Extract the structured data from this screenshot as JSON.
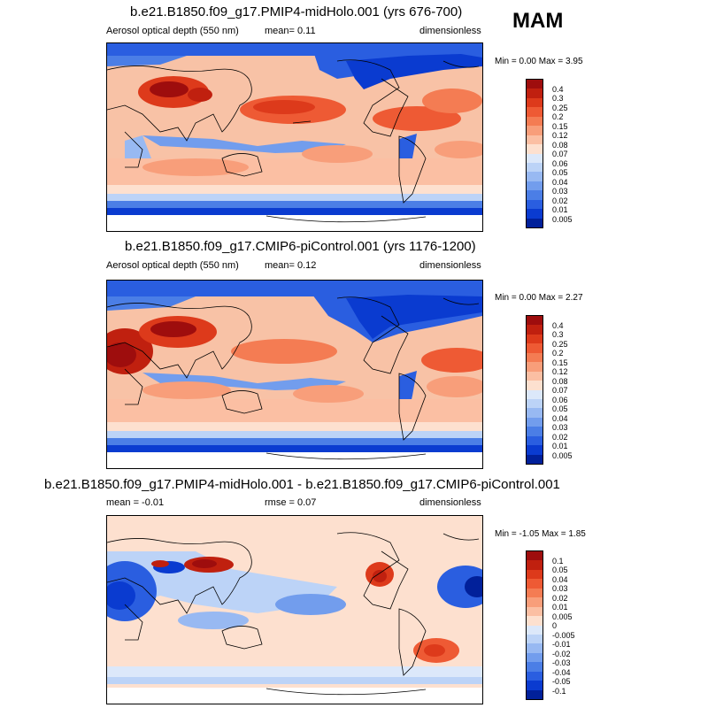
{
  "season": "MAM",
  "panels": [
    {
      "title": "b.e21.B1850.f09_g17.PMIP4-midHolo.001 (yrs 676-700)",
      "left_label": "Aerosol optical depth (550 nm)",
      "center_label": "mean=   0.11",
      "right_label": "dimensionless",
      "minmax": "Min =   0.00 Max =   3.95",
      "colorbar_labels": [
        "0.4",
        "0.3",
        "0.25",
        "0.2",
        "0.15",
        "0.12",
        "0.08",
        "0.07",
        "0.06",
        "0.05",
        "0.04",
        "0.03",
        "0.02",
        "0.01",
        "0.005"
      ],
      "colorbar_colors": [
        "#9e0d0d",
        "#c0200f",
        "#dd3a1b",
        "#ee5a34",
        "#f47c53",
        "#f89e7a",
        "#fbbfa3",
        "#fde0cf",
        "#dce8fa",
        "#bcd3f7",
        "#98b9f2",
        "#729ded",
        "#4b7ee6",
        "#2a5ee0",
        "#0a3bd0",
        "#01209a"
      ]
    },
    {
      "title": "b.e21.B1850.f09_g17.CMIP6-piControl.001 (yrs 1176-1200)",
      "left_label": "Aerosol optical depth (550 nm)",
      "center_label": "mean=   0.12",
      "right_label": "dimensionless",
      "minmax": "Min =   0.00 Max =   2.27",
      "colorbar_labels": [
        "0.4",
        "0.3",
        "0.25",
        "0.2",
        "0.15",
        "0.12",
        "0.08",
        "0.07",
        "0.06",
        "0.05",
        "0.04",
        "0.03",
        "0.02",
        "0.01",
        "0.005"
      ],
      "colorbar_colors": [
        "#9e0d0d",
        "#c0200f",
        "#dd3a1b",
        "#ee5a34",
        "#f47c53",
        "#f89e7a",
        "#fbbfa3",
        "#fde0cf",
        "#dce8fa",
        "#bcd3f7",
        "#98b9f2",
        "#729ded",
        "#4b7ee6",
        "#2a5ee0",
        "#0a3bd0",
        "#01209a"
      ]
    },
    {
      "title": "b.e21.B1850.f09_g17.PMIP4-midHolo.001 - b.e21.B1850.f09_g17.CMIP6-piControl.001",
      "left_label": "mean =   -0.01",
      "center_label": "rmse =   0.07",
      "right_label": "dimensionless",
      "minmax": "Min =  -1.05 Max =   1.85",
      "colorbar_labels": [
        "0.1",
        "0.05",
        "0.04",
        "0.03",
        "0.02",
        "0.01",
        "0.005",
        "0",
        "-0.005",
        "-0.01",
        "-0.02",
        "-0.03",
        "-0.04",
        "-0.05",
        "-0.1"
      ],
      "colorbar_colors": [
        "#9e0d0d",
        "#c0200f",
        "#dd3a1b",
        "#ee5a34",
        "#f47c53",
        "#f89e7a",
        "#fbbfa3",
        "#fde0cf",
        "#dce8fa",
        "#bcd3f7",
        "#98b9f2",
        "#729ded",
        "#4b7ee6",
        "#2a5ee0",
        "#0a3bd0",
        "#01209a"
      ]
    }
  ]
}
